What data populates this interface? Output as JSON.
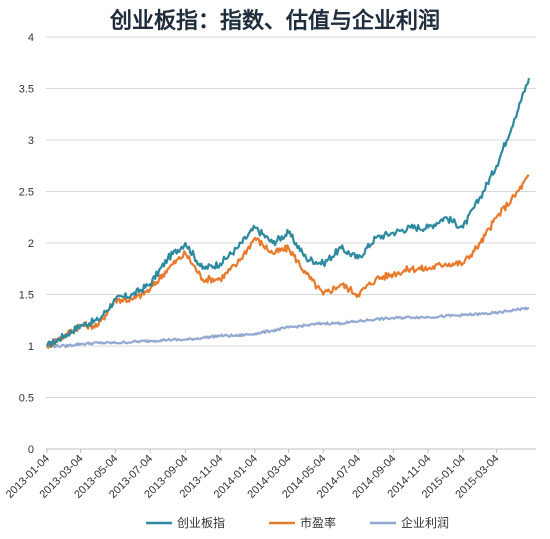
{
  "chart_data": {
    "type": "line",
    "title": "创业板指：指数、估值与企业利润",
    "xlabel": "",
    "ylabel": "",
    "ylim": [
      0,
      4
    ],
    "yticks": [
      "0",
      "0.5",
      "1",
      "1.5",
      "2",
      "2.5",
      "3",
      "3.5",
      "4"
    ],
    "grid": "horizontal",
    "legend_position": "bottom",
    "x_tick_labels": [
      "2013-01-04",
      "2013-03-04",
      "2013-05-04",
      "2013-07-04",
      "2013-09-04",
      "2013-11-04",
      "2014-01-04",
      "2014-03-04",
      "2014-05-04",
      "2014-07-04",
      "2014-09-04",
      "2014-11-04",
      "2015-01-04",
      "2015-03-04"
    ],
    "x": [
      "2013-01-04",
      "2013-02-04",
      "2013-03-04",
      "2013-04-04",
      "2013-05-04",
      "2013-06-04",
      "2013-07-04",
      "2013-08-04",
      "2013-09-04",
      "2013-10-04",
      "2013-11-04",
      "2013-12-04",
      "2014-01-04",
      "2014-02-04",
      "2014-03-04",
      "2014-04-04",
      "2014-05-04",
      "2014-06-04",
      "2014-07-04",
      "2014-08-04",
      "2014-09-04",
      "2014-10-04",
      "2014-11-04",
      "2014-12-04",
      "2015-01-04",
      "2015-02-04",
      "2015-03-04",
      "2015-04-04",
      "2015-04-30"
    ],
    "series": [
      {
        "name": "创业板指",
        "color": "#2e8a9e",
        "values": [
          1.0,
          1.1,
          1.2,
          1.25,
          1.45,
          1.5,
          1.6,
          1.85,
          2.0,
          1.75,
          1.8,
          1.95,
          2.15,
          2.0,
          2.1,
          1.85,
          1.8,
          1.95,
          1.85,
          2.05,
          2.1,
          2.15,
          2.15,
          2.25,
          2.15,
          2.45,
          2.75,
          3.2,
          3.6
        ]
      },
      {
        "name": "市盈率",
        "color": "#e87a2d",
        "values": [
          1.0,
          1.1,
          1.2,
          1.2,
          1.45,
          1.45,
          1.55,
          1.75,
          1.9,
          1.65,
          1.65,
          1.8,
          2.05,
          1.9,
          1.95,
          1.7,
          1.5,
          1.6,
          1.5,
          1.65,
          1.7,
          1.75,
          1.75,
          1.8,
          1.8,
          2.0,
          2.25,
          2.45,
          2.65
        ]
      },
      {
        "name": "企业利润",
        "color": "#93a9d1",
        "values": [
          1.0,
          1.0,
          1.02,
          1.03,
          1.03,
          1.04,
          1.05,
          1.06,
          1.06,
          1.08,
          1.1,
          1.1,
          1.12,
          1.15,
          1.18,
          1.2,
          1.22,
          1.22,
          1.24,
          1.26,
          1.27,
          1.28,
          1.28,
          1.29,
          1.3,
          1.31,
          1.32,
          1.35,
          1.37
        ]
      }
    ]
  }
}
